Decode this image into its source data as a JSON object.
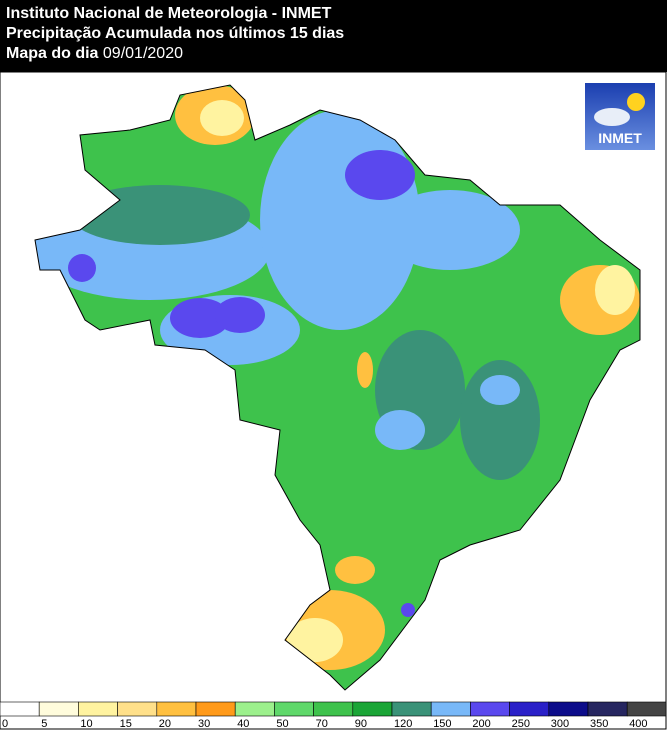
{
  "header": {
    "lines": [
      "Instituto Nacional de Meteorologia - INMET",
      "Precipitação Acumulada nos últimos 15 dias"
    ],
    "date_label": "Mapa do dia",
    "date": "09/01/2020"
  },
  "logo": {
    "text": "INMET"
  },
  "legend": {
    "labels": [
      0,
      5,
      10,
      15,
      20,
      30,
      40,
      50,
      70,
      90,
      120,
      150,
      200,
      250,
      300,
      350,
      400
    ],
    "colors": [
      "#ffffff",
      "#fffcdc",
      "#fff3a0",
      "#ffe08a",
      "#ffc040",
      "#ff9a1a",
      "#9cf08c",
      "#5fd86a",
      "#3ec24c",
      "#1aa536",
      "#3a9278",
      "#78b8f8",
      "#5a48ee",
      "#2a20c8",
      "#0c0c8a",
      "#262660",
      "#444444"
    ]
  }
}
